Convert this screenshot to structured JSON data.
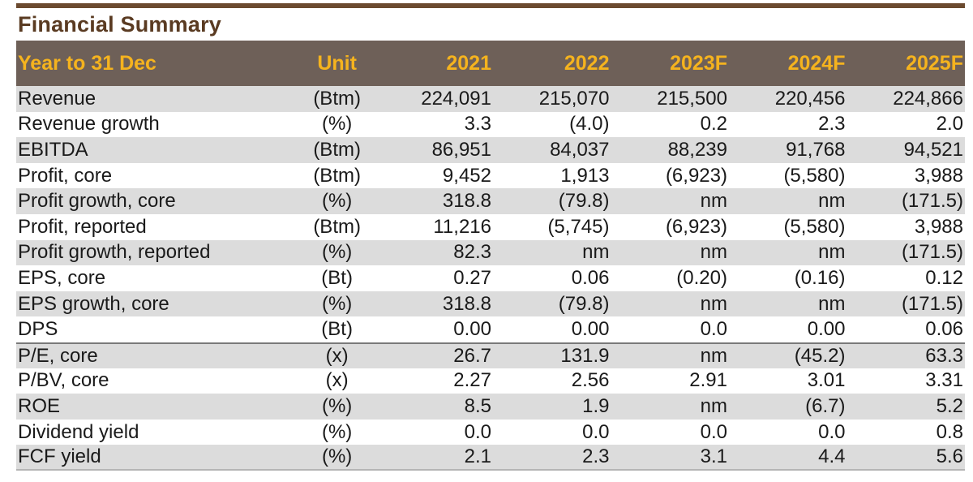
{
  "title": "Financial Summary",
  "header": {
    "label": "Year to 31 Dec",
    "unit": "Unit",
    "years": [
      "2021",
      "2022",
      "2023F",
      "2024F",
      "2025F"
    ]
  },
  "rows": [
    {
      "label": "Revenue",
      "unit": "(Btm)",
      "values": [
        "224,091",
        "215,070",
        "215,500",
        "220,456",
        "224,866"
      ]
    },
    {
      "label": "Revenue growth",
      "unit": "(%)",
      "values": [
        "3.3",
        "(4.0)",
        "0.2",
        "2.3",
        "2.0"
      ]
    },
    {
      "label": "EBITDA",
      "unit": "(Btm)",
      "values": [
        "86,951",
        "84,037",
        "88,239",
        "91,768",
        "94,521"
      ]
    },
    {
      "label": "Profit, core",
      "unit": "(Btm)",
      "values": [
        "9,452",
        "1,913",
        "(6,923)",
        "(5,580)",
        "3,988"
      ]
    },
    {
      "label": "Profit growth, core",
      "unit": "(%)",
      "values": [
        "318.8",
        "(79.8)",
        "nm",
        "nm",
        "(171.5)"
      ]
    },
    {
      "label": "Profit, reported",
      "unit": "(Btm)",
      "values": [
        "11,216",
        "(5,745)",
        "(6,923)",
        "(5,580)",
        "3,988"
      ]
    },
    {
      "label": "Profit growth, reported",
      "unit": "(%)",
      "values": [
        "82.3",
        "nm",
        "nm",
        "nm",
        "(171.5)"
      ]
    },
    {
      "label": "EPS, core",
      "unit": "(Bt)",
      "values": [
        "0.27",
        "0.06",
        "(0.20)",
        "(0.16)",
        "0.12"
      ]
    },
    {
      "label": "EPS growth, core",
      "unit": "(%)",
      "values": [
        "318.8",
        "(79.8)",
        "nm",
        "nm",
        "(171.5)"
      ]
    },
    {
      "label": "DPS",
      "unit": "(Bt)",
      "values": [
        "0.00",
        "0.00",
        "0.0",
        "0.00",
        "0.06"
      ]
    },
    {
      "label": "P/E, core",
      "unit": "(x)",
      "values": [
        "26.7",
        "131.9",
        "nm",
        "(45.2)",
        "63.3"
      ]
    },
    {
      "label": "P/BV, core",
      "unit": "(x)",
      "values": [
        "2.27",
        "2.56",
        "2.91",
        "3.01",
        "3.31"
      ]
    },
    {
      "label": "ROE",
      "unit": "(%)",
      "values": [
        "8.5",
        "1.9",
        "nm",
        "(6.7)",
        "5.2"
      ]
    },
    {
      "label": "Dividend yield",
      "unit": "(%)",
      "values": [
        "0.0",
        "0.0",
        "0.0",
        "0.0",
        "0.8"
      ]
    },
    {
      "label": "FCF yield",
      "unit": "(%)",
      "values": [
        "2.1",
        "2.3",
        "3.1",
        "4.4",
        "5.6"
      ]
    }
  ]
}
